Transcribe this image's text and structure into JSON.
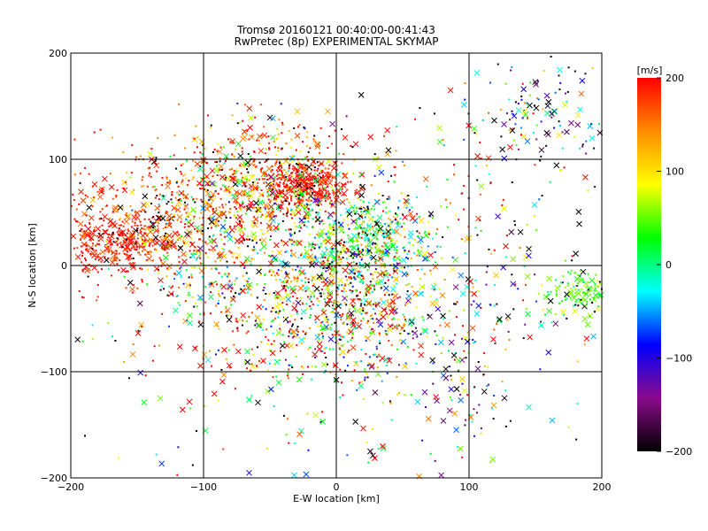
{
  "chart_data": {
    "type": "scatter",
    "title": "Tromsø 20160121 00:40:00-00:41:43",
    "subtitle": "RwPretec (8p) EXPERIMENTAL SKYMAP",
    "xlabel": "E-W location [km]",
    "ylabel": "N-S location [km]",
    "xlim": [
      -200,
      200
    ],
    "ylim": [
      -200,
      200
    ],
    "xticks": [
      -200,
      -100,
      0,
      100,
      200
    ],
    "yticks": [
      -200,
      -100,
      0,
      100,
      200
    ],
    "grid": true,
    "colorbar": {
      "label": "[m/s]",
      "min": -200,
      "max": 200,
      "ticks": [
        200,
        100,
        0,
        -100,
        -200
      ],
      "colormap": [
        "#000000",
        "#8b0a8b",
        "#0000ff",
        "#00ffff",
        "#00ff00",
        "#ffff00",
        "#ff8c00",
        "#ff0000"
      ]
    },
    "markers": [
      "dot",
      "x"
    ],
    "clusters": [
      {
        "center": [
          -158,
          22
        ],
        "spread": [
          22,
          14
        ],
        "velocity": 190,
        "vspread": 18,
        "count": 320,
        "xfrac": 0.25
      },
      {
        "center": [
          -185,
          30
        ],
        "spread": [
          15,
          25
        ],
        "velocity": 185,
        "vspread": 20,
        "count": 90,
        "xfrac": 0.3
      },
      {
        "center": [
          -140,
          60
        ],
        "spread": [
          30,
          30
        ],
        "velocity": 170,
        "vspread": 40,
        "count": 160,
        "xfrac": 0.25
      },
      {
        "center": [
          -25,
          75
        ],
        "spread": [
          18,
          12
        ],
        "velocity": 195,
        "vspread": 15,
        "count": 380,
        "xfrac": 0.2
      },
      {
        "center": [
          -60,
          70
        ],
        "spread": [
          35,
          25
        ],
        "velocity": 130,
        "vspread": 90,
        "count": 420,
        "xfrac": 0.2
      },
      {
        "center": [
          -90,
          20
        ],
        "spread": [
          30,
          35
        ],
        "velocity": 100,
        "vspread": 120,
        "count": 350,
        "xfrac": 0.2
      },
      {
        "center": [
          20,
          25
        ],
        "spread": [
          25,
          22
        ],
        "velocity": 20,
        "vspread": 60,
        "count": 420,
        "xfrac": 0.2
      },
      {
        "center": [
          0,
          -10
        ],
        "spread": [
          40,
          40
        ],
        "velocity": 60,
        "vspread": 130,
        "count": 520,
        "xfrac": 0.2
      },
      {
        "center": [
          20,
          -60
        ],
        "spread": [
          40,
          30
        ],
        "velocity": 40,
        "vspread": 140,
        "count": 260,
        "xfrac": 0.2
      },
      {
        "center": [
          -10,
          -40
        ],
        "spread": [
          35,
          30
        ],
        "velocity": 150,
        "vspread": 80,
        "count": 200,
        "xfrac": 0.15
      },
      {
        "center": [
          185,
          -25
        ],
        "spread": [
          15,
          12
        ],
        "velocity": 40,
        "vspread": 25,
        "count": 140,
        "xfrac": 0.3
      },
      {
        "center": [
          160,
          140
        ],
        "spread": [
          25,
          25
        ],
        "velocity": -80,
        "vspread": 120,
        "count": 120,
        "xfrac": 0.35
      },
      {
        "center": [
          110,
          0
        ],
        "spread": [
          60,
          60
        ],
        "velocity": 60,
        "vspread": 140,
        "count": 180,
        "xfrac": 0.35
      },
      {
        "center": [
          -60,
          110
        ],
        "spread": [
          40,
          20
        ],
        "velocity": 170,
        "vspread": 60,
        "count": 150,
        "xfrac": 0.2
      },
      {
        "center": [
          0,
          -140
        ],
        "spread": [
          90,
          40
        ],
        "velocity": 80,
        "vspread": 150,
        "count": 110,
        "xfrac": 0.35
      },
      {
        "center": [
          100,
          -100
        ],
        "spread": [
          30,
          40
        ],
        "velocity": -120,
        "vspread": 100,
        "count": 70,
        "xfrac": 0.4
      },
      {
        "center": [
          -100,
          -50
        ],
        "spread": [
          50,
          50
        ],
        "velocity": 120,
        "vspread": 100,
        "count": 130,
        "xfrac": 0.25
      },
      {
        "center": [
          70,
          100
        ],
        "spread": [
          60,
          40
        ],
        "velocity": 80,
        "vspread": 150,
        "count": 80,
        "xfrac": 0.35
      }
    ]
  }
}
